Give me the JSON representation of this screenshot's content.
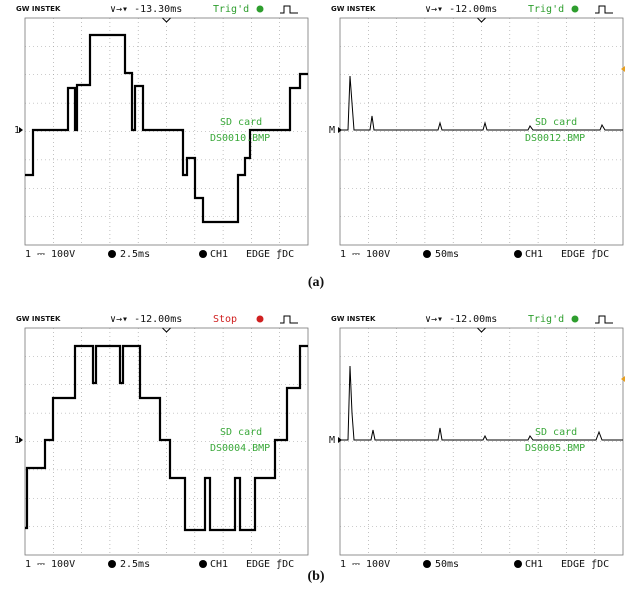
{
  "panels": [
    {
      "brand": "GW INSTEK",
      "delay": "∨→▾ -13.30ms",
      "status": "Trig'd",
      "status_color": "#2e9e2e",
      "marker": "1",
      "sd": "SD card",
      "file": "DS0010.BMP",
      "channel": "1 ⎓ 100V",
      "time": "2.5ms",
      "trigger": "CH1",
      "edge": "EDGE ƒDC"
    },
    {
      "brand": "GW INSTEK",
      "delay": "∨→▾ -12.00ms",
      "status": "Trig'd",
      "status_color": "#2e9e2e",
      "marker": "M",
      "sd": "SD card",
      "file": "DS0012.BMP",
      "channel": "1 ⎓ 100V",
      "time": "50ms",
      "trigger": "CH1",
      "edge": "EDGE ƒDC"
    },
    {
      "brand": "GW INSTEK",
      "delay": "∨→▾ -12.00ms",
      "status": "Stop",
      "status_color": "#d02020",
      "marker": "1",
      "sd": "SD card",
      "file": "DS0004.BMP",
      "channel": "1 ⎓ 100V",
      "time": "2.5ms",
      "trigger": "CH1",
      "edge": "EDGE ƒDC"
    },
    {
      "brand": "GW INSTEK",
      "delay": "∨→▾ -12.00ms",
      "status": "Trig'd",
      "status_color": "#2e9e2e",
      "marker": "M",
      "sd": "SD card",
      "file": "DS0005.BMP",
      "channel": "1 ⎓ 100V",
      "time": "50ms",
      "trigger": "CH1",
      "edge": "EDGE ƒDC"
    }
  ],
  "captions": [
    "(a)",
    "(b)"
  ]
}
